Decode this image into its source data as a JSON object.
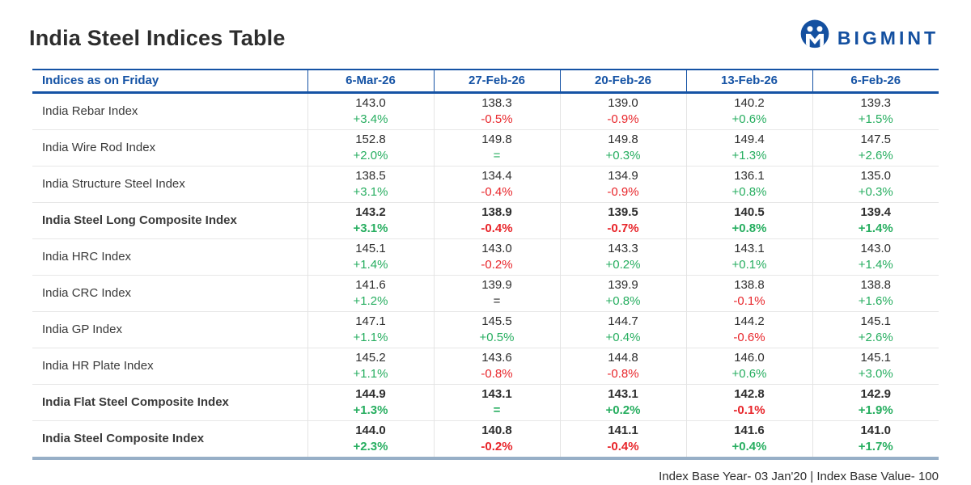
{
  "page": {
    "title": "India Steel Indices Table",
    "footnote": "Index Base Year- 03 Jan'20 | Index Base Value- 100"
  },
  "logo": {
    "text": "BIGMINT",
    "icon": "bigmint-owl-m-icon",
    "color": "#1450A0"
  },
  "colors": {
    "header_blue": "#1553A5",
    "positive_green": "#27AE60",
    "negative_red": "#E8252A",
    "neutral_dark": "#2e2e2e",
    "bottom_border_blue_gray": "#97AFC7"
  },
  "chart_data": {
    "type": "table",
    "title": "India Steel Indices Table",
    "columns": [
      "Indices as on Friday",
      "6-Mar-26",
      "27-Feb-26",
      "20-Feb-26",
      "13-Feb-26",
      "6-Feb-26"
    ],
    "rows": [
      {
        "name": "India Rebar Index",
        "bold": false,
        "cells": [
          {
            "value": "143.0",
            "change": "+3.4%",
            "color": "green"
          },
          {
            "value": "138.3",
            "change": "-0.5%",
            "color": "red"
          },
          {
            "value": "139.0",
            "change": "-0.9%",
            "color": "red"
          },
          {
            "value": "140.2",
            "change": "+0.6%",
            "color": "green"
          },
          {
            "value": "139.3",
            "change": "+1.5%",
            "color": "green"
          }
        ]
      },
      {
        "name": "India Wire Rod Index",
        "bold": false,
        "cells": [
          {
            "value": "152.8",
            "change": "+2.0%",
            "color": "green"
          },
          {
            "value": "149.8",
            "change": "=",
            "color": "green"
          },
          {
            "value": "149.8",
            "change": "+0.3%",
            "color": "green"
          },
          {
            "value": "149.4",
            "change": "+1.3%",
            "color": "green"
          },
          {
            "value": "147.5",
            "change": "+2.6%",
            "color": "green"
          }
        ]
      },
      {
        "name": "India Structure Steel Index",
        "bold": false,
        "cells": [
          {
            "value": "138.5",
            "change": "+3.1%",
            "color": "green"
          },
          {
            "value": "134.4",
            "change": "-0.4%",
            "color": "red"
          },
          {
            "value": "134.9",
            "change": "-0.9%",
            "color": "red"
          },
          {
            "value": "136.1",
            "change": "+0.8%",
            "color": "green"
          },
          {
            "value": "135.0",
            "change": "+0.3%",
            "color": "green"
          }
        ]
      },
      {
        "name": "India Steel Long Composite Index",
        "bold": true,
        "cells": [
          {
            "value": "143.2",
            "change": "+3.1%",
            "color": "green"
          },
          {
            "value": "138.9",
            "change": "-0.4%",
            "color": "red"
          },
          {
            "value": "139.5",
            "change": "-0.7%",
            "color": "red"
          },
          {
            "value": "140.5",
            "change": "+0.8%",
            "color": "green"
          },
          {
            "value": "139.4",
            "change": "+1.4%",
            "color": "green"
          }
        ]
      },
      {
        "name": "India HRC Index",
        "bold": false,
        "cells": [
          {
            "value": "145.1",
            "change": "+1.4%",
            "color": "green"
          },
          {
            "value": "143.0",
            "change": "-0.2%",
            "color": "red"
          },
          {
            "value": "143.3",
            "change": "+0.2%",
            "color": "green"
          },
          {
            "value": "143.1",
            "change": "+0.1%",
            "color": "green"
          },
          {
            "value": "143.0",
            "change": "+1.4%",
            "color": "green"
          }
        ]
      },
      {
        "name": "India CRC Index",
        "bold": false,
        "cells": [
          {
            "value": "141.6",
            "change": "+1.2%",
            "color": "green"
          },
          {
            "value": "139.9",
            "change": "=",
            "color": "dark"
          },
          {
            "value": "139.9",
            "change": "+0.8%",
            "color": "green"
          },
          {
            "value": "138.8",
            "change": "-0.1%",
            "color": "red"
          },
          {
            "value": "138.8",
            "change": "+1.6%",
            "color": "green"
          }
        ]
      },
      {
        "name": "India GP Index",
        "bold": false,
        "cells": [
          {
            "value": "147.1",
            "change": "+1.1%",
            "color": "green"
          },
          {
            "value": "145.5",
            "change": "+0.5%",
            "color": "green"
          },
          {
            "value": "144.7",
            "change": "+0.4%",
            "color": "green"
          },
          {
            "value": "144.2",
            "change": "-0.6%",
            "color": "red"
          },
          {
            "value": "145.1",
            "change": "+2.6%",
            "color": "green"
          }
        ]
      },
      {
        "name": "India HR Plate Index",
        "bold": false,
        "cells": [
          {
            "value": "145.2",
            "change": "+1.1%",
            "color": "green"
          },
          {
            "value": "143.6",
            "change": "-0.8%",
            "color": "red"
          },
          {
            "value": "144.8",
            "change": "-0.8%",
            "color": "red"
          },
          {
            "value": "146.0",
            "change": "+0.6%",
            "color": "green"
          },
          {
            "value": "145.1",
            "change": "+3.0%",
            "color": "green"
          }
        ]
      },
      {
        "name": "India Flat Steel Composite Index",
        "bold": true,
        "cells": [
          {
            "value": "144.9",
            "change": "+1.3%",
            "color": "green"
          },
          {
            "value": "143.1",
            "change": "=",
            "color": "green"
          },
          {
            "value": "143.1",
            "change": "+0.2%",
            "color": "green"
          },
          {
            "value": "142.8",
            "change": "-0.1%",
            "color": "red"
          },
          {
            "value": "142.9",
            "change": "+1.9%",
            "color": "green"
          }
        ]
      },
      {
        "name": "India Steel Composite Index",
        "bold": true,
        "cells": [
          {
            "value": "144.0",
            "change": "+2.3%",
            "color": "green"
          },
          {
            "value": "140.8",
            "change": "-0.2%",
            "color": "red"
          },
          {
            "value": "141.1",
            "change": "-0.4%",
            "color": "red"
          },
          {
            "value": "141.6",
            "change": "+0.4%",
            "color": "green"
          },
          {
            "value": "141.0",
            "change": "+1.7%",
            "color": "green"
          }
        ]
      }
    ],
    "footnote": "Index Base Year- 03 Jan'20 | Index Base Value- 100"
  }
}
